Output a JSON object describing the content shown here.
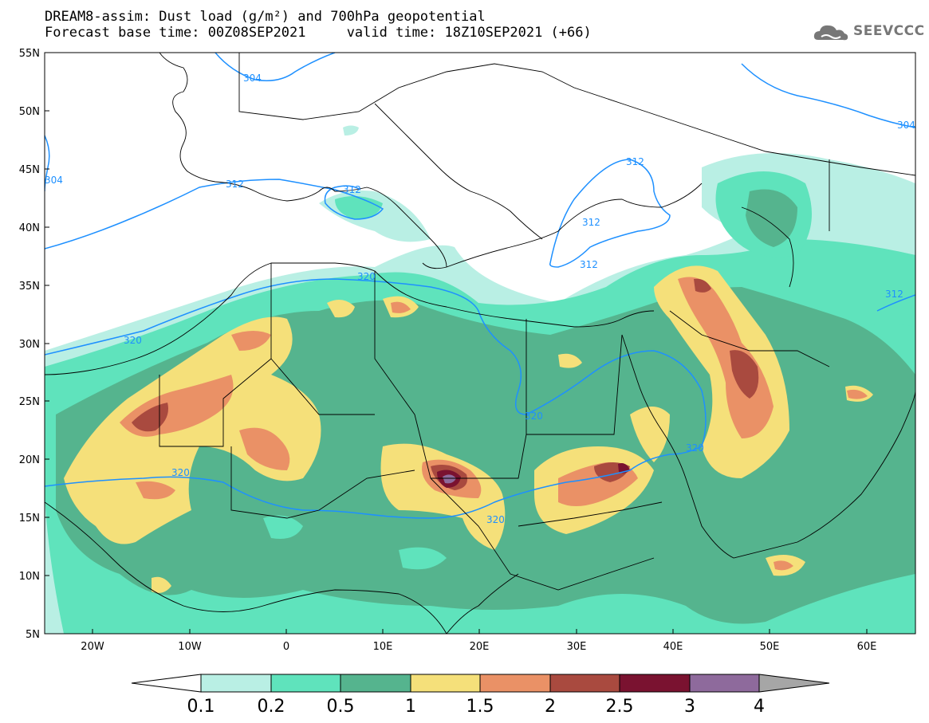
{
  "header": {
    "line1": "DREAM8-assim: Dust load (g/m²) and 700hPa geopotential",
    "line2": "Forecast base time: 00Z08SEP2021     valid time: 18Z10SEP2021 (+66)"
  },
  "logo": {
    "text": "SEEVCCC",
    "icon": "cloud-icon"
  },
  "axes": {
    "lat_labels": [
      "55N",
      "50N",
      "45N",
      "40N",
      "35N",
      "30N",
      "25N",
      "20N",
      "15N",
      "10N",
      "5N"
    ],
    "lon_labels": [
      "20W",
      "10W",
      "0",
      "10E",
      "20E",
      "30E",
      "40E",
      "50E",
      "60E"
    ]
  },
  "contour_labels": [
    "304",
    "304",
    "304",
    "312",
    "312",
    "312",
    "312",
    "312",
    "312",
    "320",
    "320",
    "320",
    "320",
    "320",
    "320"
  ],
  "colorbar": {
    "labels": [
      "0.1",
      "0.2",
      "0.5",
      "1",
      "1.5",
      "2",
      "2.5",
      "3",
      "4"
    ],
    "colors": [
      "#b9efe4",
      "#5fe3bc",
      "#55b48e",
      "#f5e07a",
      "#ea9166",
      "#a94a3f",
      "#7a1230",
      "#8e6a9c",
      "#a6a6a6"
    ]
  },
  "palette": {
    "land_line": "#000000",
    "contour": "#1e90ff"
  }
}
